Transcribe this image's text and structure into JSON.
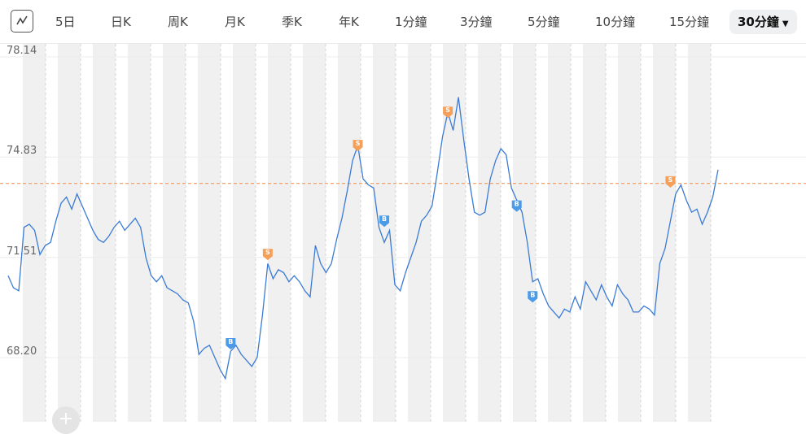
{
  "toolbar": {
    "chart_type_icon": "line-chart-icon",
    "tabs": [
      {
        "label": "5日"
      },
      {
        "label": "日K"
      },
      {
        "label": "周K"
      },
      {
        "label": "月K"
      },
      {
        "label": "季K"
      },
      {
        "label": "年K"
      },
      {
        "label": "1分鐘"
      },
      {
        "label": "3分鐘"
      },
      {
        "label": "5分鐘"
      },
      {
        "label": "10分鐘"
      },
      {
        "label": "15分鐘"
      },
      {
        "label": "30分鐘",
        "active": true,
        "dropdown_icon": "caret-down-icon"
      }
    ]
  },
  "zoom_button": {
    "icon": "plus-icon",
    "label": "+"
  },
  "colors": {
    "line": "#3a7bd5",
    "buy_marker": "#4a9be8",
    "sell_marker": "#f5a05a",
    "reference_line": "#f08c4a",
    "band_shade": "#f0f0f0"
  },
  "chart_data": {
    "type": "line",
    "ylim": [
      66.3,
      78.14
    ],
    "y_ticks": [
      "78.14",
      "74.83",
      "71.51",
      "68.20"
    ],
    "reference_value": 73.85,
    "grid": true,
    "series": [
      {
        "values": [
          70.8,
          70.4,
          70.3,
          72.4,
          72.5,
          72.3,
          71.5,
          71.8,
          71.9,
          72.6,
          73.2,
          73.4,
          73.0,
          73.5,
          73.1,
          72.7,
          72.3,
          72.0,
          71.9,
          72.1,
          72.4,
          72.6,
          72.3,
          72.5,
          72.7,
          72.4,
          71.4,
          70.8,
          70.6,
          70.8,
          70.4,
          70.3,
          70.2,
          70.0,
          69.9,
          69.3,
          68.2,
          68.4,
          68.5,
          68.1,
          67.7,
          67.4,
          68.3,
          68.5,
          68.2,
          68.0,
          67.8,
          68.1,
          69.5,
          71.2,
          70.7,
          71.0,
          70.9,
          70.6,
          70.8,
          70.6,
          70.3,
          70.1,
          71.8,
          71.2,
          70.9,
          71.2,
          72.0,
          72.7,
          73.6,
          74.6,
          75.1,
          74.0,
          73.8,
          73.7,
          72.4,
          71.9,
          72.3,
          70.5,
          70.3,
          70.9,
          71.4,
          71.9,
          72.6,
          72.8,
          73.1,
          74.2,
          75.4,
          76.2,
          75.6,
          76.7,
          75.3,
          74.0,
          72.9,
          72.8,
          72.9,
          74.0,
          74.6,
          75.0,
          74.8,
          73.7,
          73.3,
          72.9,
          71.9,
          70.6,
          70.7,
          70.2,
          69.8,
          69.6,
          69.4,
          69.7,
          69.6,
          70.1,
          69.7,
          70.6,
          70.3,
          70.0,
          70.5,
          70.1,
          69.8,
          70.5,
          70.2,
          70.0,
          69.6,
          69.6,
          69.8,
          69.7,
          69.5,
          71.2,
          71.7,
          72.6,
          73.5,
          73.8,
          73.3,
          72.9,
          73.0,
          72.5,
          72.9,
          73.4,
          74.3
        ],
        "buy_signals": [
          {
            "i": 42,
            "v": 68.55
          },
          {
            "i": 71,
            "v": 72.6
          },
          {
            "i": 96,
            "v": 73.1
          },
          {
            "i": 99,
            "v": 70.1
          }
        ],
        "sell_signals": [
          {
            "i": 49,
            "v": 71.5
          },
          {
            "i": 66,
            "v": 75.1
          },
          {
            "i": 83,
            "v": 76.2
          },
          {
            "i": 125,
            "v": 73.9
          }
        ]
      }
    ]
  }
}
